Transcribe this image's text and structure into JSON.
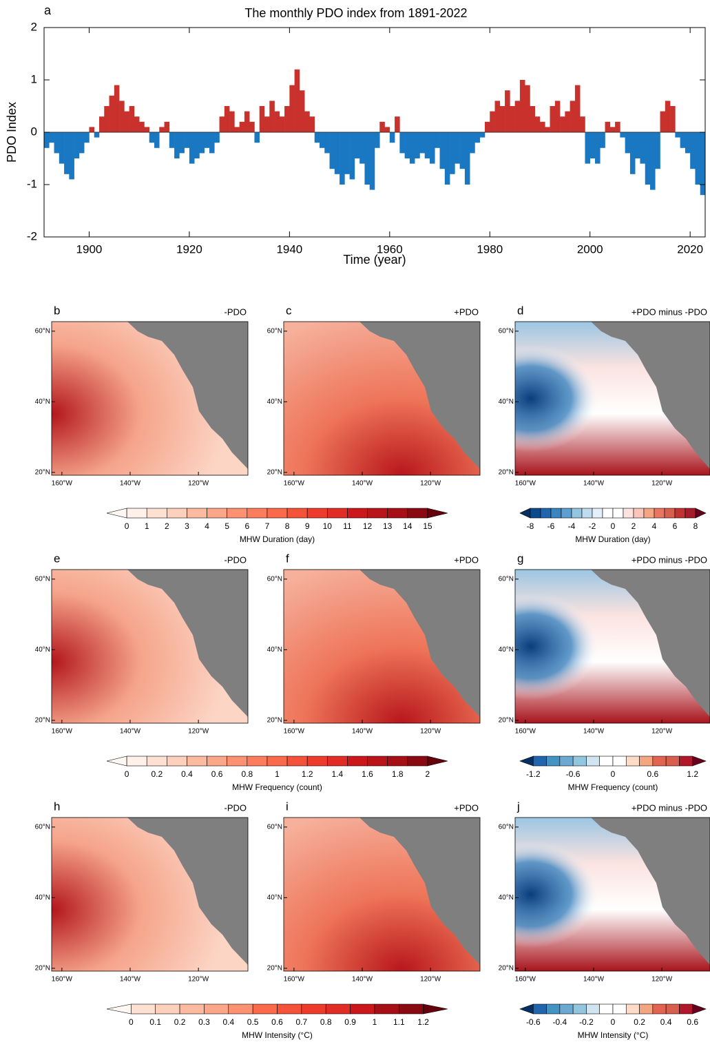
{
  "chart_data": [
    {
      "type": "bar",
      "label": "a",
      "title": "The monthly PDO index from 1891-2022",
      "ylabel": "PDO Index",
      "xlabel": "Time (year)",
      "positive_color": "#c8312c",
      "negative_color": "#1a78c2",
      "xlim": [
        1891,
        2023
      ],
      "xticks": [
        1900,
        1920,
        1940,
        1960,
        1980,
        2000,
        2020
      ],
      "ylim": [
        -2,
        2
      ],
      "yticks": [
        -2,
        -1,
        0,
        1,
        2
      ],
      "x": [
        1891,
        1892,
        1893,
        1894,
        1895,
        1896,
        1897,
        1898,
        1899,
        1900,
        1901,
        1902,
        1903,
        1904,
        1905,
        1906,
        1907,
        1908,
        1909,
        1910,
        1911,
        1912,
        1913,
        1914,
        1915,
        1916,
        1917,
        1918,
        1919,
        1920,
        1921,
        1922,
        1923,
        1924,
        1925,
        1926,
        1927,
        1928,
        1929,
        1930,
        1931,
        1932,
        1933,
        1934,
        1935,
        1936,
        1937,
        1938,
        1939,
        1940,
        1941,
        1942,
        1943,
        1944,
        1945,
        1946,
        1947,
        1948,
        1949,
        1950,
        1951,
        1952,
        1953,
        1954,
        1955,
        1956,
        1957,
        1958,
        1959,
        1960,
        1961,
        1962,
        1963,
        1964,
        1965,
        1966,
        1967,
        1968,
        1969,
        1970,
        1971,
        1972,
        1973,
        1974,
        1975,
        1976,
        1977,
        1978,
        1979,
        1980,
        1981,
        1982,
        1983,
        1984,
        1985,
        1986,
        1987,
        1988,
        1989,
        1990,
        1991,
        1992,
        1993,
        1994,
        1995,
        1996,
        1997,
        1998,
        1999,
        2000,
        2001,
        2002,
        2003,
        2004,
        2005,
        2006,
        2007,
        2008,
        2009,
        2010,
        2011,
        2012,
        2013,
        2014,
        2015,
        2016,
        2017,
        2018,
        2019,
        2020,
        2021,
        2022
      ],
      "values": [
        -0.3,
        -0.2,
        -0.4,
        -0.6,
        -0.8,
        -0.9,
        -0.5,
        -0.4,
        -0.2,
        0.1,
        -0.1,
        0.3,
        0.5,
        0.7,
        0.9,
        0.6,
        0.4,
        0.5,
        0.3,
        0.2,
        0.1,
        -0.2,
        -0.3,
        0.1,
        0.2,
        -0.3,
        -0.5,
        -0.4,
        -0.3,
        -0.6,
        -0.5,
        -0.4,
        -0.3,
        -0.4,
        -0.2,
        0.3,
        0.5,
        0.4,
        0.1,
        0.2,
        0.4,
        0.2,
        -0.2,
        0.5,
        0.3,
        0.6,
        0.4,
        0.3,
        0.5,
        0.9,
        1.2,
        0.8,
        0.4,
        0.3,
        -0.2,
        -0.3,
        -0.4,
        -0.7,
        -0.8,
        -1.0,
        -0.8,
        -0.9,
        -0.5,
        -0.6,
        -1.0,
        -1.1,
        -0.3,
        0.2,
        0.1,
        -0.2,
        0.3,
        -0.4,
        -0.5,
        -0.6,
        -0.5,
        -0.4,
        -0.5,
        -0.6,
        -0.3,
        -0.7,
        -1.0,
        -0.8,
        -0.6,
        -0.7,
        -1.0,
        -0.4,
        -0.2,
        -0.1,
        0.2,
        0.4,
        0.6,
        0.5,
        0.8,
        0.5,
        0.6,
        1.0,
        0.9,
        0.5,
        0.3,
        0.2,
        0.1,
        0.5,
        0.6,
        0.3,
        0.4,
        0.6,
        0.9,
        0.3,
        -0.6,
        -0.5,
        -0.6,
        -0.3,
        0.2,
        0.1,
        0.2,
        -0.1,
        -0.4,
        -0.8,
        -0.5,
        -0.6,
        -1.0,
        -1.1,
        -0.7,
        0.4,
        0.6,
        0.5,
        -0.1,
        -0.3,
        -0.4,
        -0.7,
        -1.0,
        -1.2
      ]
    },
    {
      "type": "map",
      "label": "b",
      "title": "-PDO",
      "ylim": [
        19.2,
        62.7
      ],
      "yticks": [
        {
          "value": 60,
          "label": "60°N"
        },
        {
          "value": 40,
          "label": "40°N"
        },
        {
          "value": 20,
          "label": "20°N"
        }
      ],
      "xlim": [
        -163,
        -105.5
      ],
      "xticks": [
        {
          "value": -160,
          "label": "160°W"
        },
        {
          "value": -140,
          "label": "140°W"
        },
        {
          "value": -120,
          "label": "120°W"
        }
      ]
    },
    {
      "type": "map",
      "label": "c",
      "title": "+PDO",
      "ylim": [
        19.2,
        62.7
      ],
      "yticks": [
        {
          "value": 60,
          "label": "60°N"
        },
        {
          "value": 40,
          "label": "40°N"
        },
        {
          "value": 20,
          "label": "20°N"
        }
      ],
      "xlim": [
        -163,
        -105.5
      ],
      "xticks": [
        {
          "value": -160,
          "label": "160°W"
        },
        {
          "value": -140,
          "label": "140°W"
        },
        {
          "value": -120,
          "label": "120°W"
        }
      ]
    },
    {
      "type": "map",
      "label": "d",
      "title": "+PDO minus -PDO",
      "ylim": [
        19.2,
        62.7
      ],
      "yticks": [
        {
          "value": 60,
          "label": "60°N"
        },
        {
          "value": 40,
          "label": "40°N"
        },
        {
          "value": 20,
          "label": "20°N"
        }
      ],
      "xlim": [
        -163,
        -105.5
      ],
      "xticks": [
        {
          "value": -160,
          "label": "160°W"
        },
        {
          "value": -140,
          "label": "140°W"
        },
        {
          "value": -120,
          "label": "120°W"
        }
      ]
    },
    {
      "type": "colorbar",
      "title": "MHW Duration (day)",
      "ticks": [
        0,
        1,
        2,
        3,
        4,
        5,
        6,
        7,
        8,
        9,
        10,
        11,
        12,
        13,
        14,
        15
      ],
      "colors": [
        "#fff7f3",
        "#fff0ea",
        "#fee0d2",
        "#fdd0bc",
        "#fcbba1",
        "#fca68a",
        "#fc9272",
        "#fb7d5d",
        "#fb6a4a",
        "#f4533a",
        "#ef3b2c",
        "#e22c26",
        "#cb181d",
        "#b91419",
        "#a50f15",
        "#8a0a12",
        "#67000d"
      ]
    },
    {
      "type": "colorbar",
      "title": "MHW Duration (day)",
      "ticks": [
        -8,
        -6,
        -4,
        -2,
        0,
        2,
        4,
        6,
        8
      ],
      "colors": [
        "#053061",
        "#0b4a8c",
        "#2166ac",
        "#3a84c0",
        "#5c9fd0",
        "#92c5de",
        "#bfdcee",
        "#e3f0f8",
        "#ffffff",
        "#ffffff",
        "#fde3e0",
        "#fbc5bb",
        "#f4a582",
        "#ea7562",
        "#d6604d",
        "#c03333",
        "#a51d2b",
        "#67001f"
      ]
    },
    {
      "type": "map",
      "label": "e",
      "title": "-PDO",
      "ylim": [
        19.2,
        62.7
      ],
      "yticks": [
        {
          "value": 60,
          "label": "60°N"
        },
        {
          "value": 40,
          "label": "40°N"
        },
        {
          "value": 20,
          "label": "20°N"
        }
      ],
      "xlim": [
        -163,
        -105.5
      ],
      "xticks": [
        {
          "value": -160,
          "label": "160°W"
        },
        {
          "value": -140,
          "label": "140°W"
        },
        {
          "value": -120,
          "label": "120°W"
        }
      ]
    },
    {
      "type": "map",
      "label": "f",
      "title": "+PDO",
      "ylim": [
        19.2,
        62.7
      ],
      "yticks": [
        {
          "value": 60,
          "label": "60°N"
        },
        {
          "value": 40,
          "label": "40°N"
        },
        {
          "value": 20,
          "label": "20°N"
        }
      ],
      "xlim": [
        -163,
        -105.5
      ],
      "xticks": [
        {
          "value": -160,
          "label": "160°W"
        },
        {
          "value": -140,
          "label": "140°W"
        },
        {
          "value": -120,
          "label": "120°W"
        }
      ]
    },
    {
      "type": "map",
      "label": "g",
      "title": "+PDO minus -PDO",
      "ylim": [
        19.2,
        62.7
      ],
      "yticks": [
        {
          "value": 60,
          "label": "60°N"
        },
        {
          "value": 40,
          "label": "40°N"
        },
        {
          "value": 20,
          "label": "20°N"
        }
      ],
      "xlim": [
        -163,
        -105.5
      ],
      "xticks": [
        {
          "value": -160,
          "label": "160°W"
        },
        {
          "value": -140,
          "label": "140°W"
        },
        {
          "value": -120,
          "label": "120°W"
        }
      ]
    },
    {
      "type": "colorbar",
      "title": "MHW Frequency (count)",
      "ticks": [
        0,
        0.2,
        0.4,
        0.6,
        0.8,
        1,
        1.2,
        1.4,
        1.6,
        1.8,
        2
      ],
      "colors": [
        "#fff7f3",
        "#fff0ea",
        "#fee0d2",
        "#fdd0bc",
        "#fcbba1",
        "#fca68a",
        "#fc9272",
        "#fb7d5d",
        "#fb6a4a",
        "#f4533a",
        "#ef3b2c",
        "#e22c26",
        "#cb181d",
        "#b91419",
        "#a50f15",
        "#8a0a12",
        "#67000d"
      ]
    },
    {
      "type": "colorbar",
      "title": "MHW Frequency (count)",
      "ticks": [
        -1.2,
        -0.6,
        0,
        0.6,
        1.2
      ],
      "colors": [
        "#053061",
        "#2166ac",
        "#4393c3",
        "#6ca9d2",
        "#92c5de",
        "#d1e5f0",
        "#ffffff",
        "#ffffff",
        "#fddbc7",
        "#f4a582",
        "#e26450",
        "#d6604d",
        "#b2182b",
        "#67001f"
      ]
    },
    {
      "type": "map",
      "label": "h",
      "title": "-PDO",
      "ylim": [
        19.2,
        62.7
      ],
      "yticks": [
        {
          "value": 60,
          "label": "60°N"
        },
        {
          "value": 40,
          "label": "40°N"
        },
        {
          "value": 20,
          "label": "20°N"
        }
      ],
      "xlim": [
        -163,
        -105.5
      ],
      "xticks": [
        {
          "value": -160,
          "label": "160°W"
        },
        {
          "value": -140,
          "label": "140°W"
        },
        {
          "value": -120,
          "label": "120°W"
        }
      ]
    },
    {
      "type": "map",
      "label": "i",
      "title": "+PDO",
      "ylim": [
        19.2,
        62.7
      ],
      "yticks": [
        {
          "value": 60,
          "label": "60°N"
        },
        {
          "value": 40,
          "label": "40°N"
        },
        {
          "value": 20,
          "label": "20°N"
        }
      ],
      "xlim": [
        -163,
        -105.5
      ],
      "xticks": [
        {
          "value": -160,
          "label": "160°W"
        },
        {
          "value": -140,
          "label": "140°W"
        },
        {
          "value": -120,
          "label": "120°W"
        }
      ]
    },
    {
      "type": "map",
      "label": "j",
      "title": "+PDO minus -PDO",
      "ylim": [
        19.2,
        62.7
      ],
      "yticks": [
        {
          "value": 60,
          "label": "60°N"
        },
        {
          "value": 40,
          "label": "40°N"
        },
        {
          "value": 20,
          "label": "20°N"
        }
      ],
      "xlim": [
        -163,
        -105.5
      ],
      "xticks": [
        {
          "value": -160,
          "label": "160°W"
        },
        {
          "value": -140,
          "label": "140°W"
        },
        {
          "value": -120,
          "label": "120°W"
        }
      ]
    },
    {
      "type": "colorbar",
      "title": "MHW Intensity (°C)",
      "ticks": [
        0,
        0.1,
        0.2,
        0.3,
        0.4,
        0.5,
        0.6,
        0.7,
        0.8,
        0.9,
        1,
        1.1,
        1.2
      ],
      "colors": [
        "#fff7f3",
        "#fee0d2",
        "#fdd0bc",
        "#fcbba1",
        "#fca68a",
        "#fc9272",
        "#fb6a4a",
        "#f4533a",
        "#ef3b2c",
        "#e22c26",
        "#cb181d",
        "#a50f15",
        "#8a0a12",
        "#67000d"
      ]
    },
    {
      "type": "colorbar",
      "title": "MHW Intensity (°C)",
      "ticks": [
        -0.6,
        -0.4,
        -0.2,
        0,
        0.2,
        0.4,
        0.6
      ],
      "colors": [
        "#053061",
        "#2166ac",
        "#4393c3",
        "#6ca9d2",
        "#92c5de",
        "#d1e5f0",
        "#ffffff",
        "#ffffff",
        "#fddbc7",
        "#f4a582",
        "#e26450",
        "#d6604d",
        "#b2182b",
        "#67001f"
      ]
    }
  ]
}
